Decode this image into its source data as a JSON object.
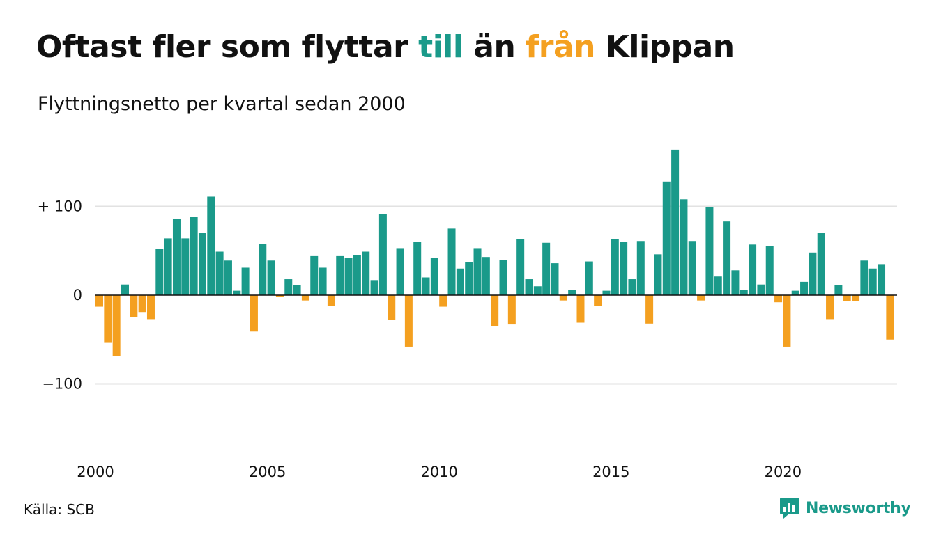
{
  "title": {
    "part1": "Oftast fler som flyttar ",
    "pos_word": "till",
    "part2": " än ",
    "neg_word": "från",
    "part3": " Klippan"
  },
  "subtitle": "Flyttningsnetto per kvartal sedan 2000",
  "source": "Källa: SCB",
  "brand": "Newsworthy",
  "colors": {
    "positive": "#1a9a8a",
    "negative": "#f4a020",
    "grid": "#e2e2e2",
    "zero": "#111111"
  },
  "icons": {
    "brand_logo": "bar-chart-speech-icon"
  },
  "chart_data": {
    "type": "bar",
    "ylim": [
      -160,
      170
    ],
    "yticks": [
      {
        "value": 100,
        "label": "+ 100"
      },
      {
        "value": 0,
        "label": "0"
      },
      {
        "value": -100,
        "label": "−100"
      }
    ],
    "xticks": [
      {
        "quarter_index": 0,
        "label": "2000"
      },
      {
        "quarter_index": 20,
        "label": "2005"
      },
      {
        "quarter_index": 40,
        "label": "2010"
      },
      {
        "quarter_index": 60,
        "label": "2015"
      },
      {
        "quarter_index": 80,
        "label": "2020"
      }
    ],
    "grid": true,
    "x_start": "2000 Q1",
    "values": [
      -13,
      -53,
      -69,
      12,
      -25,
      -19,
      -27,
      52,
      64,
      86,
      64,
      88,
      70,
      111,
      49,
      39,
      5,
      31,
      -41,
      58,
      39,
      -2,
      18,
      11,
      -6,
      44,
      31,
      -12,
      44,
      42,
      45,
      49,
      17,
      91,
      -28,
      53,
      -58,
      60,
      20,
      42,
      -13,
      75,
      30,
      37,
      53,
      43,
      -35,
      40,
      -33,
      63,
      18,
      10,
      59,
      36,
      -6,
      6,
      -31,
      38,
      -12,
      5,
      63,
      60,
      18,
      61,
      -32,
      46,
      128,
      164,
      108,
      61,
      -6,
      99,
      21,
      83,
      28,
      6,
      57,
      12,
      55,
      -8,
      -58,
      5,
      15,
      48,
      70,
      -27,
      11,
      -7,
      -7,
      39,
      30,
      35,
      -50
    ]
  }
}
